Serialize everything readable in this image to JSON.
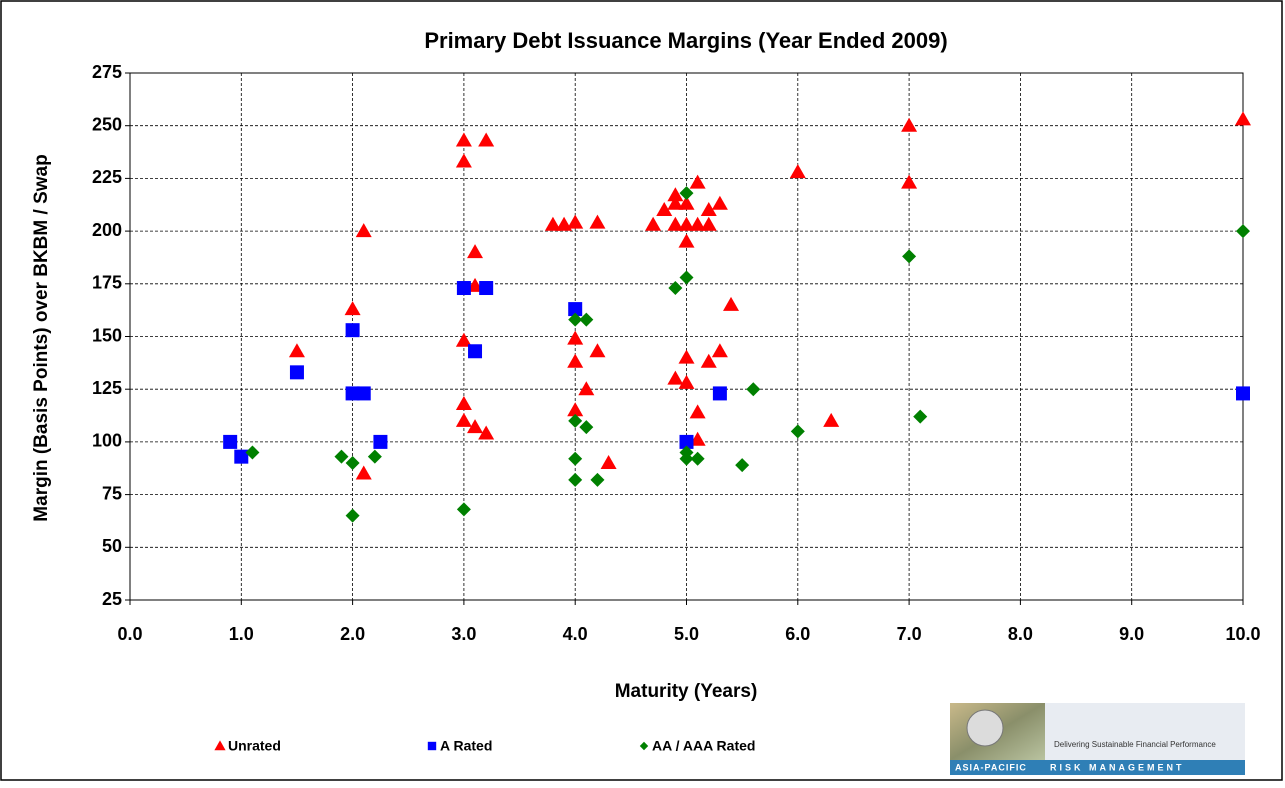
{
  "chart_data": {
    "type": "scatter",
    "title": "Primary Debt Issuance Margins  (Year Ended 2009)",
    "x_label": "Maturity (Years)",
    "y_label": "Margin (Basis Points) over BKBM / Swap",
    "xlim": [
      0,
      10
    ],
    "ylim": [
      25,
      275
    ],
    "xticks": [
      {
        "value": 0,
        "label": "0.0"
      },
      {
        "value": 1,
        "label": "1.0"
      },
      {
        "value": 2,
        "label": "2.0"
      },
      {
        "value": 3,
        "label": "3.0"
      },
      {
        "value": 4,
        "label": "4.0"
      },
      {
        "value": 5,
        "label": "5.0"
      },
      {
        "value": 6,
        "label": "6.0"
      },
      {
        "value": 7,
        "label": "7.0"
      },
      {
        "value": 8,
        "label": "8.0"
      },
      {
        "value": 9,
        "label": "9.0"
      },
      {
        "value": 10,
        "label": "10.0"
      }
    ],
    "yticks": [
      25,
      50,
      75,
      100,
      125,
      150,
      175,
      200,
      225,
      250,
      275
    ],
    "grid": true,
    "legend": "bottom",
    "series": [
      {
        "name": "Unrated",
        "color": "#ff0000",
        "marker": "triangle",
        "x": [
          1.5,
          2.0,
          2.1,
          2.1,
          3.0,
          3.0,
          3.0,
          3.0,
          3.0,
          3.1,
          3.1,
          3.1,
          3.2,
          3.2,
          3.8,
          3.9,
          4.0,
          4.0,
          4.0,
          4.0,
          4.1,
          4.2,
          4.2,
          4.3,
          4.7,
          4.8,
          4.9,
          4.9,
          4.9,
          4.9,
          5.0,
          5.0,
          5.0,
          5.0,
          5.0,
          5.1,
          5.1,
          5.1,
          5.1,
          5.2,
          5.2,
          5.2,
          5.3,
          5.3,
          5.4,
          6.0,
          6.3,
          7.0,
          7.0,
          10.0
        ],
        "values": [
          143,
          163,
          200,
          85,
          243,
          233,
          148,
          118,
          110,
          190,
          107,
          174,
          243,
          104,
          203,
          203,
          204,
          149,
          138,
          115,
          125,
          204,
          143,
          90,
          203,
          210,
          217,
          213,
          203,
          130,
          213,
          203,
          195,
          140,
          128,
          223,
          203,
          114,
          101,
          210,
          203,
          138,
          213,
          143,
          165,
          228,
          110,
          250,
          223,
          253
        ]
      },
      {
        "name": "A Rated",
        "color": "#0000ff",
        "marker": "square",
        "x": [
          0.9,
          1.0,
          1.5,
          2.0,
          2.0,
          2.1,
          2.25,
          3.0,
          3.1,
          3.2,
          4.0,
          5.0,
          5.3,
          10.0
        ],
        "values": [
          100,
          93,
          133,
          153,
          123,
          123,
          100,
          173,
          143,
          173,
          163,
          100,
          123,
          123
        ]
      },
      {
        "name": "AA / AAA Rated",
        "color": "#008000",
        "marker": "diamond",
        "x": [
          1.1,
          1.9,
          2.0,
          2.0,
          2.2,
          3.0,
          4.0,
          4.1,
          4.0,
          4.1,
          4.0,
          4.0,
          4.2,
          4.9,
          5.0,
          5.0,
          5.0,
          5.0,
          5.1,
          5.5,
          5.6,
          6.0,
          7.0,
          7.1,
          10.0
        ],
        "values": [
          95,
          93,
          90,
          65,
          93,
          68,
          158,
          158,
          110,
          107,
          92,
          82,
          82,
          173,
          178,
          218,
          95,
          92,
          92,
          89,
          125,
          105,
          188,
          112,
          200
        ]
      }
    ]
  },
  "logo": {
    "tagline": "Delivering Sustainable Financial Performance",
    "left": "ASIA-PACIFIC",
    "right": "RISK MANAGEMENT"
  }
}
